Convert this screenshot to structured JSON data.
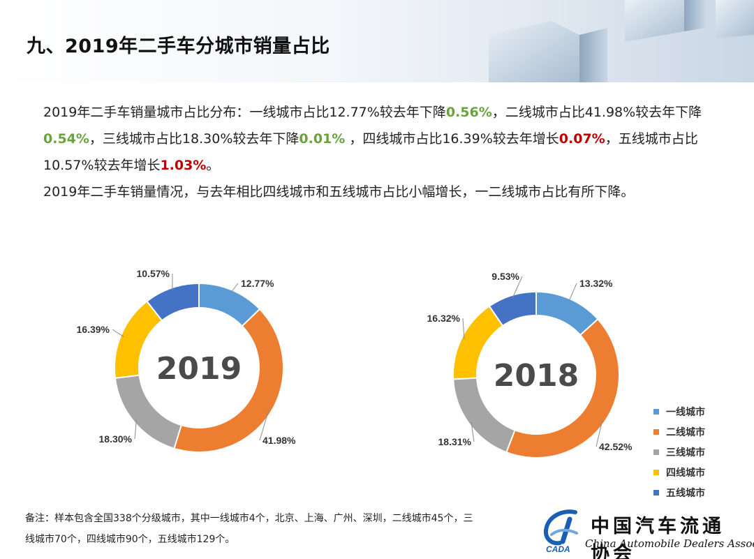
{
  "header": {
    "title": "九、2019年二手车分城市销量占比"
  },
  "paragraph": {
    "p1_a": "2019年二手车销量城市占比分布：一线城市占比12.77%较去年下降",
    "p1_b": "0.56%",
    "p1_c": "，二线城市占比41.98%较去年下降",
    "p1_d": "0.54%",
    "p1_e": "，三线城市占比18.30%较去年下降",
    "p1_f": "0.01%",
    "p1_g": " ，四线城市占比16.39%较去年增长",
    "p1_h": "0.07%",
    "p1_i": "，五线城市占比10.57%较去年增长",
    "p1_j": "1.03%",
    "p1_k": "。",
    "p2": "2019年二手车销量情况，与去年相比四线城市和五线城市占比小幅增长，一二线城市占比有所下降。"
  },
  "colors": {
    "tier1": "#5b9bd5",
    "tier2": "#ed7d31",
    "tier3": "#a5a5a5",
    "tier4": "#ffc000",
    "tier5": "#4472c4",
    "increase": "#c00000",
    "decrease": "#6aa33d"
  },
  "chart_data": [
    {
      "type": "pie",
      "variant": "donut",
      "center_label": "2019",
      "categories": [
        "一线城市",
        "二线城市",
        "三线城市",
        "四线城市",
        "五线城市"
      ],
      "values": [
        12.77,
        41.98,
        18.3,
        16.39,
        10.57
      ],
      "labels": [
        "12.77%",
        "41.98%",
        "18.30%",
        "16.39%",
        "10.57%"
      ]
    },
    {
      "type": "pie",
      "variant": "donut",
      "center_label": "2018",
      "categories": [
        "一线城市",
        "二线城市",
        "三线城市",
        "四线城市",
        "五线城市"
      ],
      "values": [
        13.32,
        42.52,
        18.31,
        16.32,
        9.53
      ],
      "labels": [
        "13.32%",
        "42.52%",
        "18.31%",
        "16.32%",
        "9.53%"
      ],
      "legend": "right"
    }
  ],
  "legend": [
    {
      "label": "一线城市",
      "color": "#5b9bd5"
    },
    {
      "label": "二线城市",
      "color": "#ed7d31"
    },
    {
      "label": "三线城市",
      "color": "#a5a5a5"
    },
    {
      "label": "四线城市",
      "color": "#ffc000"
    },
    {
      "label": "五线城市",
      "color": "#4472c4"
    }
  ],
  "footnote": {
    "line1": "备注：样本包含全国338个分级城市，其中一线城市4个，北京、上海、广州、深圳，二线城市45个，三",
    "line2": "线城市70个，四线城市90个，五线城市129个。"
  },
  "logo": {
    "name_cn": "中国汽车流通协会",
    "name_en": "China Automobile Dealers Association",
    "abbr": "CADA"
  }
}
